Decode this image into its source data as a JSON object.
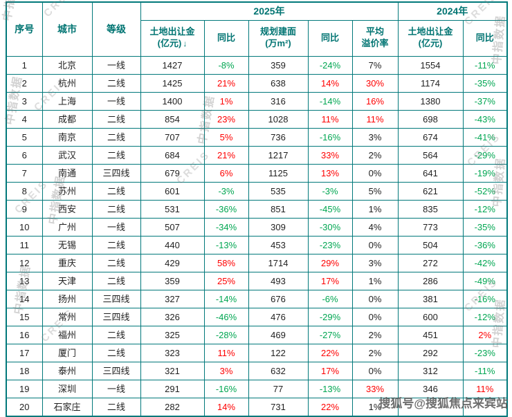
{
  "chart_data": {
    "type": "table",
    "header": {
      "no": "序号",
      "city": "城市",
      "tier": "等级",
      "group_2025": "2025年",
      "group_2024": "2024年",
      "fee_l1": "土地出让金",
      "fee_l2": "(亿元)",
      "sort_icon": "↓",
      "yoy": "同比",
      "area_l1": "规划建面",
      "area_l2": "(万m²)",
      "premium_l1": "平均",
      "premium_l2": "溢价率",
      "fee2024_l1": "土地出让金",
      "fee2024_l2": "(亿元)"
    },
    "rows": [
      {
        "no": "1",
        "city": "北京",
        "tier": "一线",
        "fee2025": "1427",
        "yoy_fee2025": "-8%",
        "area2025": "359",
        "yoy_area2025": "-24%",
        "premium2025": "7%",
        "fee2024": "1554",
        "yoy_fee2024": "-11%"
      },
      {
        "no": "2",
        "city": "杭州",
        "tier": "二线",
        "fee2025": "1425",
        "yoy_fee2025": "21%",
        "area2025": "638",
        "yoy_area2025": "14%",
        "premium2025": "30%",
        "fee2024": "1174",
        "yoy_fee2024": "-35%"
      },
      {
        "no": "3",
        "city": "上海",
        "tier": "一线",
        "fee2025": "1400",
        "yoy_fee2025": "1%",
        "area2025": "316",
        "yoy_area2025": "-14%",
        "premium2025": "16%",
        "fee2024": "1380",
        "yoy_fee2024": "-37%"
      },
      {
        "no": "4",
        "city": "成都",
        "tier": "二线",
        "fee2025": "854",
        "yoy_fee2025": "23%",
        "area2025": "1028",
        "yoy_area2025": "11%",
        "premium2025": "11%",
        "fee2024": "698",
        "yoy_fee2024": "-43%"
      },
      {
        "no": "5",
        "city": "南京",
        "tier": "二线",
        "fee2025": "707",
        "yoy_fee2025": "5%",
        "area2025": "736",
        "yoy_area2025": "-16%",
        "premium2025": "3%",
        "fee2024": "674",
        "yoy_fee2024": "-41%"
      },
      {
        "no": "6",
        "city": "武汉",
        "tier": "二线",
        "fee2025": "684",
        "yoy_fee2025": "21%",
        "area2025": "1217",
        "yoy_area2025": "33%",
        "premium2025": "2%",
        "fee2024": "564",
        "yoy_fee2024": "-29%"
      },
      {
        "no": "7",
        "city": "南通",
        "tier": "三四线",
        "fee2025": "679",
        "yoy_fee2025": "6%",
        "area2025": "1125",
        "yoy_area2025": "13%",
        "premium2025": "0%",
        "fee2024": "641",
        "yoy_fee2024": "-19%"
      },
      {
        "no": "8",
        "city": "苏州",
        "tier": "二线",
        "fee2025": "601",
        "yoy_fee2025": "-3%",
        "area2025": "535",
        "yoy_area2025": "-3%",
        "premium2025": "5%",
        "fee2024": "621",
        "yoy_fee2024": "-52%"
      },
      {
        "no": "9",
        "city": "西安",
        "tier": "二线",
        "fee2025": "531",
        "yoy_fee2025": "-36%",
        "area2025": "851",
        "yoy_area2025": "-45%",
        "premium2025": "1%",
        "fee2024": "835",
        "yoy_fee2024": "-12%"
      },
      {
        "no": "10",
        "city": "广州",
        "tier": "一线",
        "fee2025": "507",
        "yoy_fee2025": "-34%",
        "area2025": "309",
        "yoy_area2025": "-30%",
        "premium2025": "4%",
        "fee2024": "773",
        "yoy_fee2024": "-35%"
      },
      {
        "no": "11",
        "city": "无锡",
        "tier": "二线",
        "fee2025": "440",
        "yoy_fee2025": "-13%",
        "area2025": "453",
        "yoy_area2025": "-23%",
        "premium2025": "0%",
        "fee2024": "504",
        "yoy_fee2024": "-36%"
      },
      {
        "no": "12",
        "city": "重庆",
        "tier": "二线",
        "fee2025": "429",
        "yoy_fee2025": "58%",
        "area2025": "1714",
        "yoy_area2025": "29%",
        "premium2025": "3%",
        "fee2024": "272",
        "yoy_fee2024": "-42%"
      },
      {
        "no": "13",
        "city": "天津",
        "tier": "二线",
        "fee2025": "359",
        "yoy_fee2025": "25%",
        "area2025": "493",
        "yoy_area2025": "17%",
        "premium2025": "1%",
        "fee2024": "286",
        "yoy_fee2024": "-49%"
      },
      {
        "no": "14",
        "city": "扬州",
        "tier": "三四线",
        "fee2025": "327",
        "yoy_fee2025": "-14%",
        "area2025": "676",
        "yoy_area2025": "-6%",
        "premium2025": "0%",
        "fee2024": "381",
        "yoy_fee2024": "-16%"
      },
      {
        "no": "15",
        "city": "常州",
        "tier": "三四线",
        "fee2025": "326",
        "yoy_fee2025": "-46%",
        "area2025": "476",
        "yoy_area2025": "-29%",
        "premium2025": "0%",
        "fee2024": "600",
        "yoy_fee2024": "-12%"
      },
      {
        "no": "16",
        "city": "福州",
        "tier": "二线",
        "fee2025": "325",
        "yoy_fee2025": "-28%",
        "area2025": "469",
        "yoy_area2025": "-27%",
        "premium2025": "2%",
        "fee2024": "451",
        "yoy_fee2024": "2%"
      },
      {
        "no": "17",
        "city": "厦门",
        "tier": "二线",
        "fee2025": "323",
        "yoy_fee2025": "11%",
        "area2025": "122",
        "yoy_area2025": "22%",
        "premium2025": "2%",
        "fee2024": "292",
        "yoy_fee2024": "-23%"
      },
      {
        "no": "18",
        "city": "泰州",
        "tier": "三四线",
        "fee2025": "321",
        "yoy_fee2025": "3%",
        "area2025": "632",
        "yoy_area2025": "17%",
        "premium2025": "0%",
        "fee2024": "312",
        "yoy_fee2024": "-11%"
      },
      {
        "no": "19",
        "city": "深圳",
        "tier": "一线",
        "fee2025": "291",
        "yoy_fee2025": "-16%",
        "area2025": "77",
        "yoy_area2025": "-13%",
        "premium2025": "33%",
        "fee2024": "346",
        "yoy_fee2024": "11%"
      },
      {
        "no": "20",
        "city": "石家庄",
        "tier": "二线",
        "fee2025": "282",
        "yoy_fee2025": "14%",
        "area2025": "731",
        "yoy_area2025": "22%",
        "premium2025": "1%",
        "fee2024": "",
        "yoy_fee2024": ""
      }
    ]
  },
  "watermark": {
    "diagonal_cn": "中指数据",
    "diagonal_en": "CREIS",
    "bottom_right": "搜狐号@搜狐焦点来宾站"
  },
  "colors": {
    "accent_teal": "#00787a",
    "positive_red": "#fe0000",
    "negative_green": "#00a651",
    "watermark_gray": "#999999"
  }
}
